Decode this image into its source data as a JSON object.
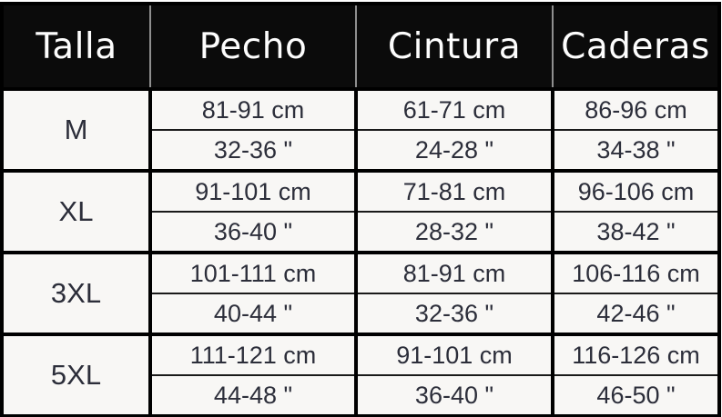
{
  "colors": {
    "header_bg": "#0b0b0b",
    "header_text": "#fdfdfd",
    "header_divider": "#8f8f8f",
    "grid_border": "#000000",
    "cell_bg": "#f8f7f5",
    "body_text": "#2c2e3a"
  },
  "chart_data": {
    "type": "table",
    "columns": [
      "Talla",
      "Pecho",
      "Cintura",
      "Caderas"
    ],
    "units": [
      "cm",
      "inches"
    ],
    "rows": [
      {
        "talla": "M",
        "pecho_cm": "81-91 cm",
        "pecho_in": "32-36 \"",
        "cintura_cm": "61-71 cm",
        "cintura_in": "24-28 \"",
        "caderas_cm": "86-96 cm",
        "caderas_in": "34-38 \""
      },
      {
        "talla": "XL",
        "pecho_cm": "91-101 cm",
        "pecho_in": "36-40 \"",
        "cintura_cm": "71-81 cm",
        "cintura_in": "28-32 \"",
        "caderas_cm": "96-106 cm",
        "caderas_in": "38-42 \""
      },
      {
        "talla": "3XL",
        "pecho_cm": "101-111 cm",
        "pecho_in": "40-44 \"",
        "cintura_cm": "81-91 cm",
        "cintura_in": "32-36 \"",
        "caderas_cm": "106-116 cm",
        "caderas_in": "42-46 \""
      },
      {
        "talla": "5XL",
        "pecho_cm": "111-121 cm",
        "pecho_in": "44-48 \"",
        "cintura_cm": "91-101 cm",
        "cintura_in": "36-40 \"",
        "caderas_cm": "116-126 cm",
        "caderas_in": "46-50 \""
      }
    ]
  }
}
